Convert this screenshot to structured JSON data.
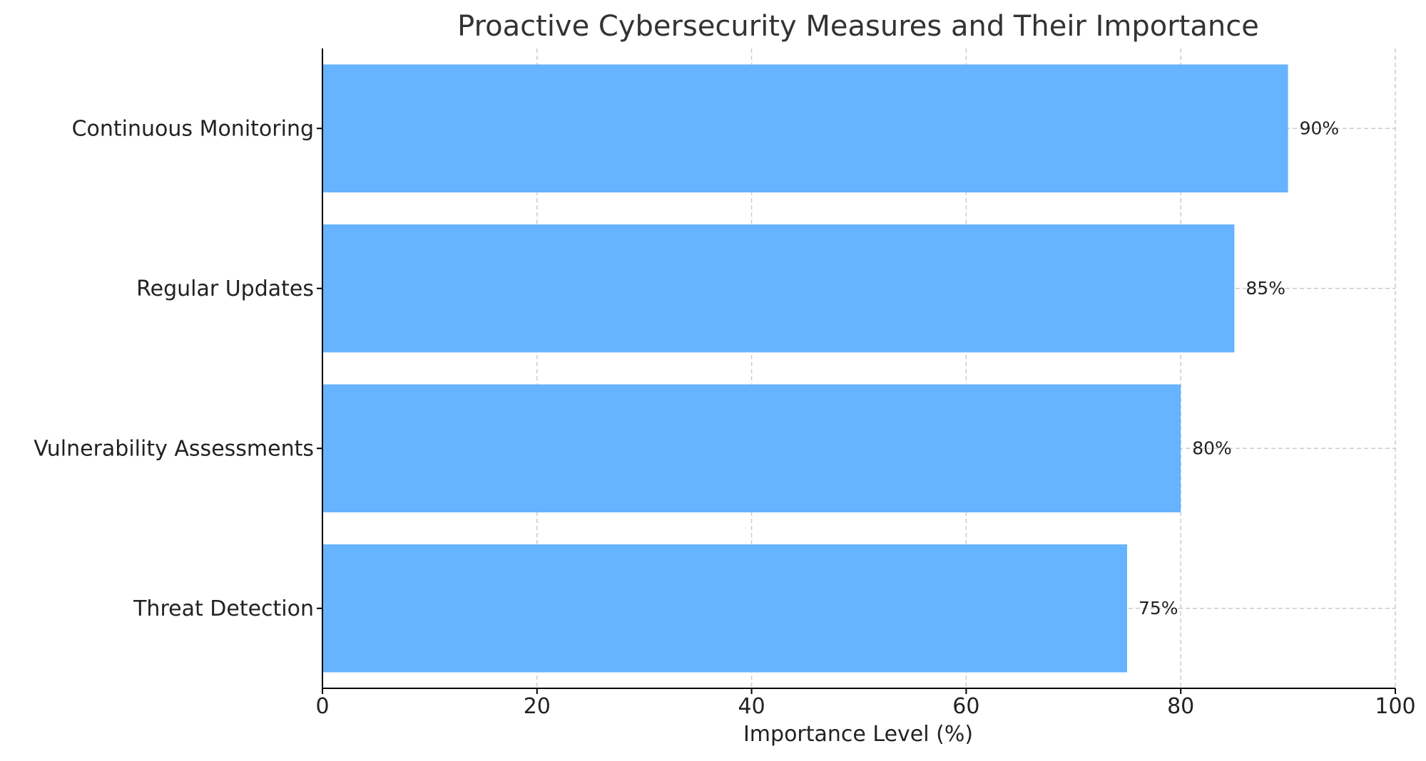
{
  "chart_data": {
    "type": "bar",
    "orientation": "horizontal",
    "title": "Proactive Cybersecurity Measures and Their Importance",
    "xlabel": "Importance Level (%)",
    "ylabel": "",
    "xlim": [
      0,
      100
    ],
    "xticks": [
      0,
      20,
      40,
      60,
      80,
      100
    ],
    "categories": [
      "Continuous Monitoring",
      "Regular Updates",
      "Vulnerability Assessments",
      "Threat Detection"
    ],
    "values": [
      90,
      85,
      80,
      75
    ],
    "data_labels": [
      "90%",
      "85%",
      "80%",
      "75%"
    ],
    "grid": true,
    "legend": "none",
    "colors": {
      "bar": "#66b3ff",
      "grid": "#cccccc",
      "axis": "#000000",
      "text": "#222222",
      "title": "#333333"
    }
  }
}
